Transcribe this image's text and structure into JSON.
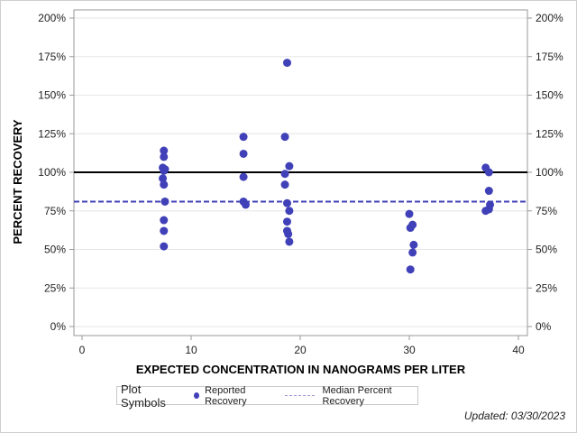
{
  "chart_data": {
    "type": "scatter",
    "title": "",
    "xlabel": "EXPECTED CONCENTRATION IN NANOGRAMS PER LITER",
    "ylabel": "PERCENT RECOVERY",
    "xlim": [
      -1,
      41
    ],
    "ylim": [
      -5,
      205
    ],
    "x_ticks": [
      0,
      10,
      20,
      30,
      40
    ],
    "y_ticks": [
      "0%",
      "25%",
      "50%",
      "75%",
      "100%",
      "125%",
      "150%",
      "175%",
      "200%"
    ],
    "grid": "horizontal",
    "reference_lines": [
      {
        "name": "100% reference",
        "y": 100,
        "style": "solid",
        "color": "#000000"
      },
      {
        "name": "Median Percent Recovery",
        "y": 81,
        "style": "dashed",
        "color": "#4040b8"
      }
    ],
    "series": [
      {
        "name": "Reported Recovery",
        "color": "#4040b8",
        "points": [
          [
            7.5,
            114
          ],
          [
            7.5,
            110
          ],
          [
            7.4,
            103
          ],
          [
            7.6,
            102
          ],
          [
            7.5,
            101
          ],
          [
            7.4,
            96
          ],
          [
            7.5,
            92
          ],
          [
            7.6,
            81
          ],
          [
            7.5,
            69
          ],
          [
            7.5,
            62
          ],
          [
            7.5,
            52
          ],
          [
            14.8,
            123
          ],
          [
            14.8,
            112
          ],
          [
            14.8,
            97
          ],
          [
            14.8,
            81
          ],
          [
            15.0,
            79
          ],
          [
            18.8,
            171
          ],
          [
            18.6,
            123
          ],
          [
            19.0,
            104
          ],
          [
            18.6,
            99
          ],
          [
            18.6,
            92
          ],
          [
            18.8,
            80
          ],
          [
            19.0,
            75
          ],
          [
            18.8,
            68
          ],
          [
            18.8,
            62
          ],
          [
            18.9,
            60
          ],
          [
            19.0,
            55
          ],
          [
            30.0,
            73
          ],
          [
            30.3,
            66
          ],
          [
            30.1,
            64
          ],
          [
            30.4,
            53
          ],
          [
            30.3,
            48
          ],
          [
            30.1,
            37
          ],
          [
            37.0,
            103
          ],
          [
            37.3,
            100
          ],
          [
            37.3,
            88
          ],
          [
            37.4,
            79
          ],
          [
            37.3,
            76
          ],
          [
            37.0,
            75
          ]
        ]
      }
    ],
    "legend": {
      "title": "Plot Symbols",
      "entries": [
        "Reported Recovery",
        "Median Percent Recovery"
      ],
      "position": "bottom"
    }
  },
  "legend": {
    "title": "Plot Symbols",
    "reported": "Reported Recovery",
    "median": "Median Percent Recovery"
  },
  "footer": {
    "updated": "Updated: 03/30/2023"
  }
}
